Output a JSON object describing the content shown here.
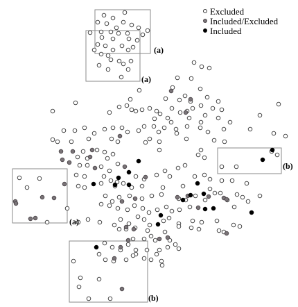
{
  "legend": {
    "excluded": "Excluded",
    "mixed": "Included/Excluded",
    "included": "Included"
  },
  "colors": {
    "excluded_fill": "#ffffff",
    "excluded_stroke": "#333333",
    "mixed_fill": "#7a7478",
    "mixed_stroke": "#4a4448",
    "included_fill": "#000000",
    "box_stroke": "#8a8a8a"
  },
  "regions": {
    "top_outer": "(a)",
    "top_inner": "(a)",
    "left": "(a)",
    "right": "(b)",
    "bottom": "(b)"
  }
}
